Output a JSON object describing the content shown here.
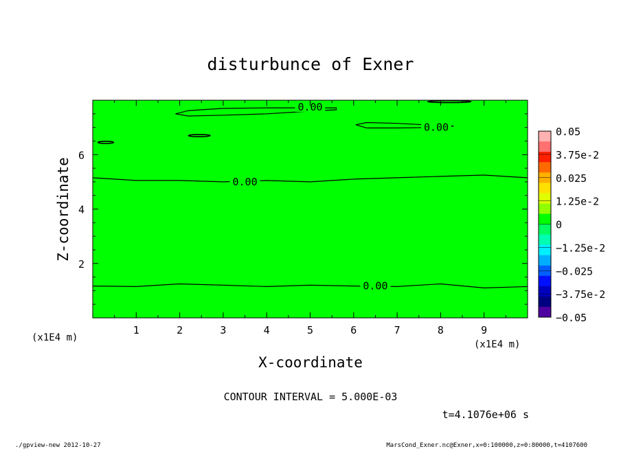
{
  "chart_data": {
    "type": "contour",
    "title": "disturbunce of Exner",
    "xlabel": "X-coordinate",
    "ylabel": "Z-coordinate",
    "x_unit": "(x1E4 m)",
    "y_unit": "(x1E4 m)",
    "xlim": [
      0,
      10
    ],
    "ylim": [
      0,
      8
    ],
    "x_ticks": [
      1,
      2,
      3,
      4,
      5,
      6,
      7,
      8,
      9
    ],
    "y_ticks": [
      2,
      4,
      6
    ],
    "x_tick_labels": [
      "1",
      "2",
      "3",
      "4",
      "5",
      "6",
      "7",
      "8",
      "9"
    ],
    "y_tick_labels": [
      "2",
      "4",
      "6"
    ],
    "fill_color": "#00ff00",
    "contour_interval_label": "CONTOUR INTERVAL = 5.000E-03",
    "time_label": "t=4.1076e+06 s",
    "contour_labels": [
      "0.00",
      "0.00",
      "0.00",
      "0.00"
    ],
    "contours": [
      {
        "label": "0.00",
        "label_at": [
          6.5,
          1.17
        ],
        "points": [
          [
            0,
            1.17
          ],
          [
            1,
            1.15
          ],
          [
            2,
            1.25
          ],
          [
            3,
            1.2
          ],
          [
            4,
            1.15
          ],
          [
            5,
            1.2
          ],
          [
            6,
            1.17
          ],
          [
            7,
            1.15
          ],
          [
            8,
            1.25
          ],
          [
            9,
            1.1
          ],
          [
            10,
            1.15
          ]
        ]
      },
      {
        "label": "0.00",
        "label_at": [
          3.5,
          5.0
        ],
        "points": [
          [
            0,
            5.15
          ],
          [
            1,
            5.05
          ],
          [
            2,
            5.05
          ],
          [
            3,
            5.0
          ],
          [
            4,
            5.05
          ],
          [
            5,
            5.0
          ],
          [
            6,
            5.1
          ],
          [
            7,
            5.15
          ],
          [
            8,
            5.2
          ],
          [
            9,
            5.25
          ],
          [
            10,
            5.15
          ]
        ]
      },
      {
        "label": "0.00",
        "label_at": [
          5.0,
          7.75
        ],
        "closed": true,
        "points": [
          [
            1.9,
            7.5
          ],
          [
            2.2,
            7.62
          ],
          [
            3.0,
            7.7
          ],
          [
            4.0,
            7.72
          ],
          [
            5.0,
            7.72
          ],
          [
            5.6,
            7.72
          ],
          [
            5.6,
            7.65
          ],
          [
            5.0,
            7.6
          ],
          [
            4.0,
            7.5
          ],
          [
            3.0,
            7.45
          ],
          [
            2.2,
            7.42
          ]
        ]
      },
      {
        "label": "0.00",
        "label_at": [
          7.9,
          7.0
        ],
        "closed": true,
        "points": [
          [
            6.05,
            7.1
          ],
          [
            6.3,
            7.18
          ],
          [
            7.0,
            7.15
          ],
          [
            8.0,
            7.07
          ],
          [
            8.3,
            7.05
          ],
          [
            8.0,
            7.0
          ],
          [
            7.0,
            6.98
          ],
          [
            6.3,
            6.98
          ]
        ]
      }
    ],
    "small_contours": [
      {
        "center": [
          2.45,
          6.7
        ],
        "rx": 0.25,
        "ry": 0.04
      },
      {
        "center": [
          0.3,
          6.45
        ],
        "rx": 0.18,
        "ry": 0.04
      },
      {
        "center": [
          8.2,
          7.95
        ],
        "rx": 0.5,
        "ry": 0.03
      }
    ],
    "colorbar": {
      "levels": [
        "0.05",
        "3.75e-2",
        "0.025",
        "1.25e-2",
        "0",
        "−1.25e-2",
        "−0.025",
        "−3.75e-2",
        "−0.05"
      ],
      "colors": [
        "#ffb0b0",
        "#ff7070",
        "#ff2000",
        "#ff6a00",
        "#ffb000",
        "#ffe000",
        "#e0ff00",
        "#90ff00",
        "#00ff00",
        "#00ff60",
        "#00ffb0",
        "#00f0ff",
        "#00b0ff",
        "#0060ff",
        "#0010ff",
        "#0000c0",
        "#000080",
        "#5000a0"
      ]
    }
  },
  "footer": {
    "left": "./gpview-new  2012-10-27",
    "right": "MarsCond_Exner.nc@Exner,x=0:100000,z=0:80000,t=4107600"
  }
}
